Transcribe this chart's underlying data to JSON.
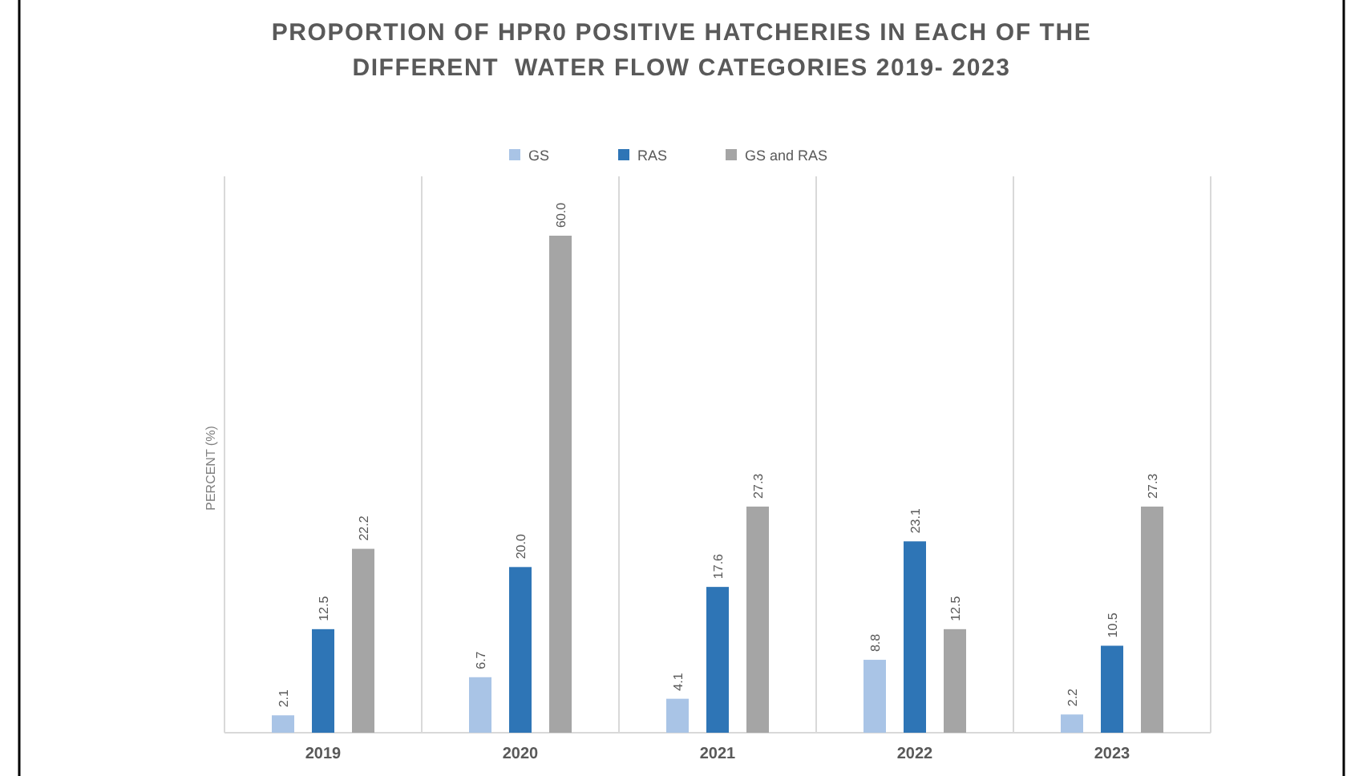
{
  "chart_data": {
    "type": "bar",
    "title": "PROPORTION OF HPR0 POSITIVE HATCHERIES IN EACH OF THE DIFFERENT  WATER FLOW CATEGORIES 2019- 2023",
    "ylabel": "PERCENT (%)",
    "categories": [
      "2019",
      "2020",
      "2021",
      "2022",
      "2023"
    ],
    "series": [
      {
        "name": "GS",
        "color": "#a9c4e6",
        "values": [
          2.1,
          6.7,
          4.1,
          8.8,
          2.2
        ],
        "value_labels": [
          "2.1",
          "6.7",
          "4.1",
          "8.8",
          "2.2"
        ]
      },
      {
        "name": "RAS",
        "color": "#2e75b6",
        "values": [
          12.5,
          20.0,
          17.6,
          23.1,
          10.5
        ],
        "value_labels": [
          "12.5",
          "20.0",
          "17.6",
          "23.1",
          "10.5"
        ]
      },
      {
        "name": "GS and RAS",
        "color": "#a5a5a5",
        "values": [
          22.2,
          60.0,
          27.3,
          12.5,
          27.3
        ],
        "value_labels": [
          "22.2",
          "60.0",
          "27.3",
          "12.5",
          "27.3"
        ]
      }
    ],
    "relative": false,
    "legend": "top"
  }
}
